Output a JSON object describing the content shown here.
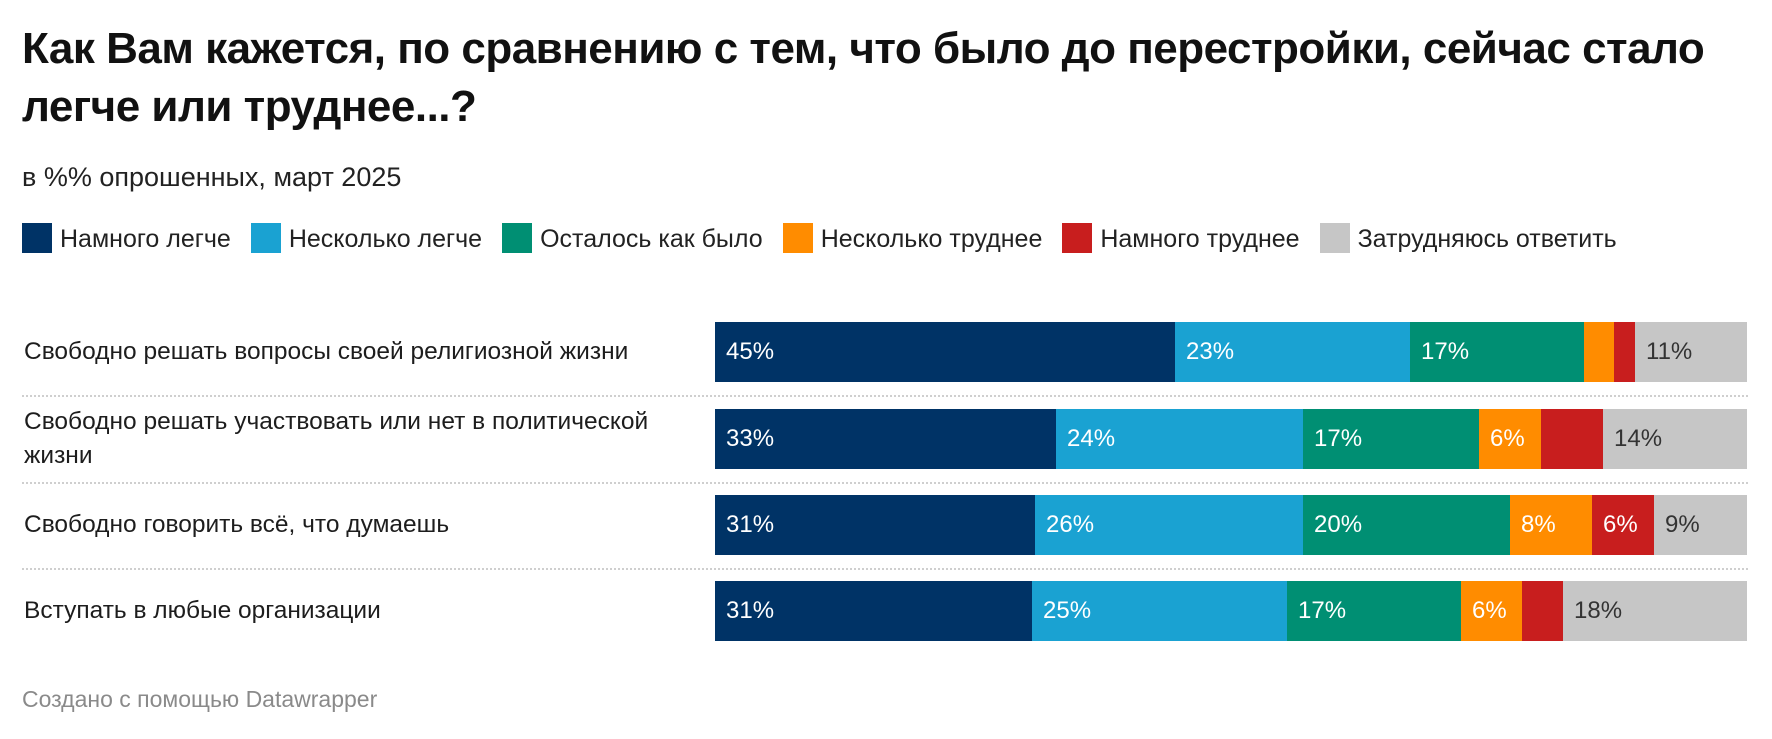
{
  "title": "Как Вам кажется, по сравнению с тем, что было до перестройки, сейчас стало легче или труднее...?",
  "subtitle": "в %% опрошенных, март 2025",
  "footer": "Создано с помощью Datawrapper",
  "colors": {
    "much_easier": "#003366",
    "somewhat_easier": "#1aa2d2",
    "same": "#008f73",
    "somewhat_harder": "#ff8c00",
    "much_harder": "#c81e1e",
    "dont_know": "#c6c6c6"
  },
  "chart_data": {
    "type": "bar",
    "orientation": "horizontal",
    "stacked": true,
    "xlim": [
      0,
      100
    ],
    "legend_position": "top",
    "categories": [
      "Свободно решать вопросы своей религиозной жизни",
      "Свободно решать участвовать или нет в политической жизни",
      "Свободно говорить всё, что думаешь",
      "Вступать в любые организации"
    ],
    "series": [
      {
        "name": "Намного легче",
        "color": "#003366",
        "values": [
          45,
          33,
          31,
          31
        ],
        "labels": [
          "45%",
          "33%",
          "31%",
          "31%"
        ]
      },
      {
        "name": "Несколько легче",
        "color": "#1aa2d2",
        "values": [
          23,
          24,
          26,
          25
        ],
        "labels": [
          "23%",
          "24%",
          "26%",
          "25%"
        ]
      },
      {
        "name": "Осталось как было",
        "color": "#008f73",
        "values": [
          17,
          17,
          20,
          17
        ],
        "labels": [
          "17%",
          "17%",
          "20%",
          "17%"
        ]
      },
      {
        "name": "Несколько труднее",
        "color": "#ff8c00",
        "values": [
          3,
          6,
          8,
          6
        ],
        "labels": [
          "",
          "6%",
          "8%",
          "6%"
        ]
      },
      {
        "name": "Намного труднее",
        "color": "#c81e1e",
        "values": [
          2,
          6,
          6,
          4
        ],
        "labels": [
          "",
          "",
          "6%",
          ""
        ]
      },
      {
        "name": "Затрудняюсь ответить",
        "color": "#c6c6c6",
        "values": [
          11,
          14,
          9,
          18
        ],
        "labels": [
          "11%",
          "14%",
          "9%",
          "18%"
        ]
      }
    ]
  }
}
